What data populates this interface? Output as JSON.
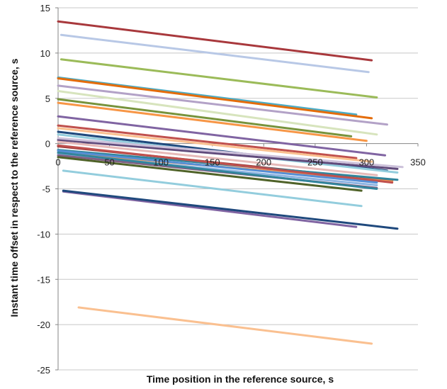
{
  "chart_data": {
    "type": "line",
    "title": "",
    "xlabel": "Time position in the reference source, s",
    "ylabel": "Instant time offset in respect to the reference source, s",
    "xlim": [
      0,
      350
    ],
    "ylim": [
      -25,
      15
    ],
    "xticks": [
      0,
      50,
      100,
      150,
      200,
      250,
      300,
      350
    ],
    "yticks": [
      -25,
      -20,
      -15,
      -10,
      -5,
      0,
      5,
      10,
      15
    ],
    "xtick_labels": [
      "0",
      "50",
      "100",
      "150",
      "200",
      "250",
      "300",
      "350"
    ],
    "ytick_labels": [
      "-25",
      "-20",
      "-15",
      "-10",
      "-5",
      "0",
      "5",
      "10",
      "15"
    ],
    "grid": "horizontal",
    "legend": "none",
    "series": [
      {
        "color": "#a8383c",
        "x": [
          0,
          305
        ],
        "y": [
          13.5,
          9.2
        ]
      },
      {
        "color": "#b8c8e6",
        "x": [
          3,
          302
        ],
        "y": [
          12.0,
          7.9
        ]
      },
      {
        "color": "#9bbb59",
        "x": [
          3,
          310
        ],
        "y": [
          9.3,
          5.1
        ]
      },
      {
        "color": "#4bacc6",
        "x": [
          0,
          290
        ],
        "y": [
          7.3,
          3.2
        ]
      },
      {
        "color": "#e46c0a",
        "x": [
          0,
          305
        ],
        "y": [
          7.2,
          2.8
        ]
      },
      {
        "color": "#b3a2c7",
        "x": [
          0,
          320
        ],
        "y": [
          6.4,
          2.1
        ]
      },
      {
        "color": "#d7e4bd",
        "x": [
          0,
          310
        ],
        "y": [
          5.8,
          1.0
        ]
      },
      {
        "color": "#77933c",
        "x": [
          0,
          285
        ],
        "y": [
          4.9,
          0.8
        ]
      },
      {
        "color": "#f79646",
        "x": [
          0,
          300
        ],
        "y": [
          4.5,
          0.3
        ]
      },
      {
        "color": "#8064a2",
        "x": [
          0,
          318
        ],
        "y": [
          3.0,
          -1.3
        ]
      },
      {
        "color": "#c0504d",
        "x": [
          0,
          290
        ],
        "y": [
          2.0,
          -1.6
        ]
      },
      {
        "color": "#fac090",
        "x": [
          0,
          305
        ],
        "y": [
          1.7,
          -2.0
        ]
      },
      {
        "color": "#1f497d",
        "x": [
          0,
          320
        ],
        "y": [
          1.3,
          -3.0
        ]
      },
      {
        "color": "#93cddd",
        "x": [
          0,
          330
        ],
        "y": [
          1.0,
          -3.2
        ]
      },
      {
        "color": "#604a7b",
        "x": [
          0,
          330
        ],
        "y": [
          0.4,
          -2.8
        ]
      },
      {
        "color": "#ccc1da",
        "x": [
          0,
          335
        ],
        "y": [
          0.6,
          -2.6
        ]
      },
      {
        "color": "#e6b9b8",
        "x": [
          0,
          310
        ],
        "y": [
          0.2,
          -3.5
        ]
      },
      {
        "color": "#953735",
        "x": [
          0,
          325
        ],
        "y": [
          -0.3,
          -4.1
        ]
      },
      {
        "color": "#31859c",
        "x": [
          0,
          330
        ],
        "y": [
          -0.7,
          -4.0
        ]
      },
      {
        "color": "#f59d56",
        "x": [
          0,
          325
        ],
        "y": [
          -1.0,
          -4.2
        ]
      },
      {
        "color": "#c0504d",
        "x": [
          0,
          325
        ],
        "y": [
          -0.2,
          -4.3
        ]
      },
      {
        "color": "#558ed5",
        "x": [
          0,
          310
        ],
        "y": [
          -0.8,
          -4.3
        ]
      },
      {
        "color": "#8db3e2",
        "x": [
          0,
          310
        ],
        "y": [
          -1.1,
          -4.6
        ]
      },
      {
        "color": "#7f6084",
        "x": [
          0,
          310
        ],
        "y": [
          -1.3,
          -4.9
        ]
      },
      {
        "color": "#31859c",
        "x": [
          0,
          310
        ],
        "y": [
          -1.0,
          -5.0
        ]
      },
      {
        "color": "#4f6228",
        "x": [
          0,
          295
        ],
        "y": [
          -1.5,
          -5.2
        ]
      },
      {
        "color": "#93cddd",
        "x": [
          5,
          295
        ],
        "y": [
          -3.0,
          -6.9
        ]
      },
      {
        "color": "#8064a2",
        "x": [
          5,
          290
        ],
        "y": [
          -5.3,
          -9.2
        ]
      },
      {
        "color": "#1f497d",
        "x": [
          5,
          330
        ],
        "y": [
          -5.2,
          -9.4
        ]
      },
      {
        "color": "#fac090",
        "x": [
          20,
          305
        ],
        "y": [
          -18.1,
          -22.1
        ]
      }
    ]
  }
}
